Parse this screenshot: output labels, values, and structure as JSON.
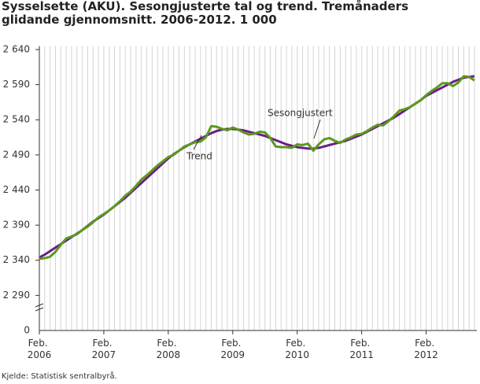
{
  "chart_data": {
    "type": "line",
    "title": "Sysselsette (AKU).  Sesongjusterte tal og trend. Tremånaders glidande gjennomsnitt. 2006-2012. 1 000",
    "source": "Kjelde: Statistisk sentralbyrå.",
    "categories": [
      "Feb. 2006",
      null,
      null,
      null,
      null,
      null,
      null,
      null,
      null,
      null,
      null,
      null,
      "Feb. 2007",
      null,
      null,
      null,
      null,
      null,
      null,
      null,
      null,
      null,
      null,
      null,
      "Feb. 2008",
      null,
      null,
      null,
      null,
      null,
      null,
      null,
      null,
      null,
      null,
      null,
      "Feb. 2009",
      null,
      null,
      null,
      null,
      null,
      null,
      null,
      null,
      null,
      null,
      null,
      "Feb. 2010",
      null,
      null,
      null,
      null,
      null,
      null,
      null,
      null,
      null,
      null,
      null,
      "Feb. 2011",
      null,
      null,
      null,
      null,
      null,
      null,
      null,
      null,
      null,
      null,
      null,
      "Feb. 2012",
      null,
      null,
      null,
      null,
      null,
      null,
      null,
      null,
      null
    ],
    "series": [
      {
        "name": "Trend",
        "color": "#6b1f86",
        "values": [
          2344,
          2348,
          2353,
          2358,
          2363,
          2368,
          2373,
          2378,
          2383,
          2389,
          2395,
          2400,
          2405,
          2411,
          2417,
          2423,
          2429,
          2436,
          2443,
          2450,
          2457,
          2464,
          2471,
          2478,
          2485,
          2491,
          2496,
          2501,
          2505,
          2509,
          2513,
          2517,
          2521,
          2524,
          2526,
          2527,
          2527,
          2526,
          2525,
          2523,
          2521,
          2519,
          2517,
          2514,
          2511,
          2508,
          2505,
          2503,
          2501,
          2500,
          2499,
          2499,
          2500,
          2502,
          2504,
          2506,
          2508,
          2510,
          2513,
          2516,
          2519,
          2523,
          2527,
          2531,
          2535,
          2539,
          2543,
          2548,
          2553,
          2558,
          2563,
          2568,
          2574,
          2578,
          2582,
          2586,
          2590,
          2594,
          2597,
          2600,
          2601,
          2602
        ]
      },
      {
        "name": "Sesongjustert",
        "color": "#5b9a1c",
        "values": [
          2342,
          2343,
          2345,
          2352,
          2362,
          2371,
          2374,
          2377,
          2383,
          2388,
          2394,
          2401,
          2406,
          2411,
          2417,
          2424,
          2432,
          2438,
          2446,
          2455,
          2461,
          2468,
          2475,
          2481,
          2487,
          2490,
          2496,
          2502,
          2505,
          2508,
          2509,
          2515,
          2531,
          2530,
          2527,
          2525,
          2529,
          2526,
          2522,
          2519,
          2520,
          2523,
          2522,
          2514,
          2502,
          2501,
          2501,
          2500,
          2505,
          2504,
          2506,
          2496,
          2505,
          2512,
          2514,
          2510,
          2507,
          2512,
          2515,
          2519,
          2520,
          2524,
          2529,
          2533,
          2532,
          2538,
          2545,
          2553,
          2555,
          2558,
          2563,
          2568,
          2575,
          2581,
          2586,
          2592,
          2592,
          2588,
          2593,
          2602,
          2601,
          2596
        ]
      }
    ],
    "ylim": [
      2240,
      2645
    ],
    "yticks": [
      {
        "value": 2290,
        "label": "2 290"
      },
      {
        "value": 2340,
        "label": "2 340"
      },
      {
        "value": 2390,
        "label": "2 390"
      },
      {
        "value": 2440,
        "label": "2 440"
      },
      {
        "value": 2490,
        "label": "2 490"
      },
      {
        "value": 2540,
        "label": "2 540"
      },
      {
        "value": 2590,
        "label": "2 590"
      },
      {
        "value": 2640,
        "label": "2 640"
      }
    ],
    "axis_break_label": "0",
    "grid": "x"
  }
}
